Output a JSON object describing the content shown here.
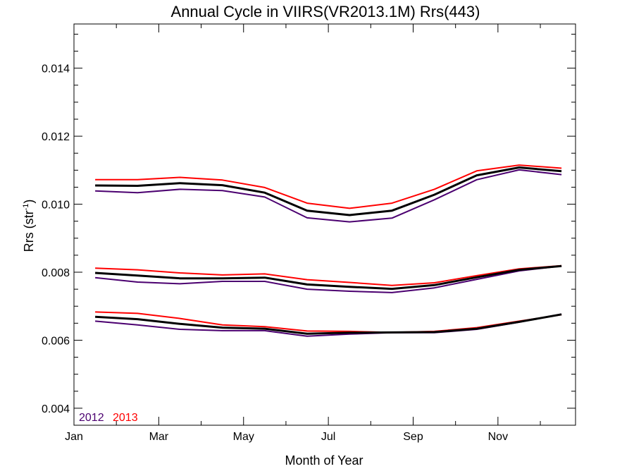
{
  "chart_data": {
    "type": "line",
    "title": "Annual Cycle in VIIRS(VR2013.1M) Rrs(443)",
    "xlabel": "Month of Year",
    "ylabel_main": "Rrs (str",
    "ylabel_sup": "-1",
    "ylabel_close": ")",
    "xlim": [
      1,
      12.83
    ],
    "ylim": [
      0.0035,
      0.0153
    ],
    "x_ticks": [
      {
        "label": "Jan",
        "value": 1
      },
      {
        "label": "Mar",
        "value": 3
      },
      {
        "label": "May",
        "value": 5
      },
      {
        "label": "Jul",
        "value": 7
      },
      {
        "label": "Sep",
        "value": 9
      },
      {
        "label": "Nov",
        "value": 11
      }
    ],
    "y_ticks": [
      {
        "label": "0.004",
        "value": 0.004
      },
      {
        "label": "0.006",
        "value": 0.006
      },
      {
        "label": "0.008",
        "value": 0.008
      },
      {
        "label": "0.010",
        "value": 0.01
      },
      {
        "label": "0.012",
        "value": 0.012
      },
      {
        "label": "0.014",
        "value": 0.014
      }
    ],
    "x": [
      1.5,
      2.5,
      3.5,
      4.5,
      5.5,
      6.5,
      7.5,
      8.5,
      9.5,
      10.5,
      11.5,
      12.5
    ],
    "legend": [
      {
        "label": "2012",
        "color": "#4b0070"
      },
      {
        "label": "2013",
        "color": "#ff0000"
      }
    ],
    "colors": {
      "y2012": "#4b0070",
      "y2013": "#ff0000",
      "mean": "#000000"
    },
    "groups": [
      {
        "y2012": [
          0.01039,
          0.01034,
          0.01044,
          0.0104,
          0.01021,
          0.0096,
          0.00948,
          0.00959,
          0.01013,
          0.01072,
          0.01101,
          0.01087
        ],
        "y2013": [
          0.01072,
          0.01072,
          0.01079,
          0.01071,
          0.01049,
          0.01003,
          0.00988,
          0.01003,
          0.01044,
          0.01098,
          0.01115,
          0.01106
        ],
        "mean": [
          0.01055,
          0.01054,
          0.01062,
          0.01056,
          0.01034,
          0.00981,
          0.00968,
          0.00981,
          0.01028,
          0.01085,
          0.01108,
          0.01097
        ]
      },
      {
        "y2012": [
          0.00784,
          0.00771,
          0.00766,
          0.00773,
          0.00773,
          0.0075,
          0.00744,
          0.0074,
          0.00754,
          0.00779,
          0.00804,
          0.00818
        ],
        "y2013": [
          0.00812,
          0.00807,
          0.00798,
          0.00792,
          0.00795,
          0.00778,
          0.0077,
          0.00761,
          0.00769,
          0.0079,
          0.0081,
          0.00819
        ],
        "mean": [
          0.00798,
          0.0079,
          0.00782,
          0.00782,
          0.00784,
          0.00764,
          0.00757,
          0.00751,
          0.00762,
          0.00785,
          0.00807,
          0.00818
        ]
      },
      {
        "y2012": [
          0.00656,
          0.00645,
          0.00632,
          0.00628,
          0.00628,
          0.00612,
          0.00618,
          0.00622,
          0.00622,
          0.00632,
          0.00653,
          0.00677
        ],
        "y2013": [
          0.00683,
          0.00679,
          0.00664,
          0.00645,
          0.0064,
          0.00627,
          0.00626,
          0.00623,
          0.00626,
          0.00637,
          0.00656,
          0.00675
        ],
        "mean": [
          0.00669,
          0.00662,
          0.00648,
          0.00637,
          0.00634,
          0.00619,
          0.00622,
          0.00623,
          0.00624,
          0.00634,
          0.00654,
          0.00676
        ]
      }
    ]
  }
}
